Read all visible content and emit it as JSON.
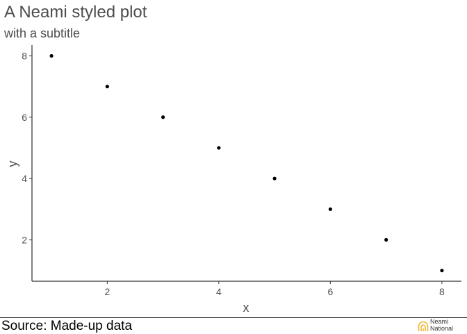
{
  "chart_data": {
    "type": "scatter",
    "title": "A Neami styled plot",
    "subtitle": "with a subtitle",
    "xlabel": "x",
    "ylabel": "y",
    "x": [
      1,
      2,
      3,
      4,
      5,
      6,
      7,
      8
    ],
    "y": [
      8,
      7,
      6,
      5,
      4,
      3,
      2,
      1
    ],
    "xlim": [
      0.65,
      8.35
    ],
    "ylim": [
      0.65,
      8.35
    ],
    "x_ticks": [
      2,
      4,
      6,
      8
    ],
    "y_ticks": [
      2,
      4,
      6,
      8
    ],
    "grid": false,
    "legend": "none",
    "point_color": "#000000"
  },
  "footer": {
    "source": "Source: Made-up data",
    "logo_line1": "Neami",
    "logo_line2": "National",
    "logo_color": "#f2b632"
  }
}
